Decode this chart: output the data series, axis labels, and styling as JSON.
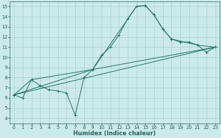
{
  "xlabel": "Humidex (Indice chaleur)",
  "xlim": [
    -0.5,
    23.5
  ],
  "ylim": [
    3.5,
    15.5
  ],
  "xticks": [
    0,
    1,
    2,
    3,
    4,
    5,
    6,
    7,
    8,
    9,
    10,
    11,
    12,
    13,
    14,
    15,
    16,
    17,
    18,
    19,
    20,
    21,
    22,
    23
  ],
  "yticks": [
    4,
    5,
    6,
    7,
    8,
    9,
    10,
    11,
    12,
    13,
    14,
    15
  ],
  "bg": "#cceaea",
  "grid_color": "#a8d0d0",
  "lc": "#1a7060",
  "line1_x": [
    0,
    1,
    2,
    3,
    4,
    5,
    6,
    7,
    8,
    9,
    10,
    11,
    12,
    13,
    14,
    15,
    16,
    17,
    18,
    19,
    20,
    21,
    22,
    23
  ],
  "line1_y": [
    6.3,
    6.0,
    7.8,
    7.2,
    6.8,
    6.7,
    6.5,
    4.3,
    8.0,
    8.8,
    10.2,
    11.0,
    12.2,
    13.8,
    15.0,
    15.1,
    14.2,
    12.8,
    11.8,
    11.5,
    11.5,
    11.2,
    10.5,
    11.0
  ],
  "line2_x": [
    0,
    2,
    9,
    14,
    15,
    16,
    17,
    18,
    21,
    23
  ],
  "line2_y": [
    6.3,
    7.8,
    8.8,
    15.0,
    15.1,
    14.2,
    12.8,
    11.8,
    11.2,
    11.0
  ],
  "line3_x": [
    0,
    23
  ],
  "line3_y": [
    6.3,
    11.0
  ],
  "line4_x": [
    0,
    9,
    23
  ],
  "line4_y": [
    6.3,
    8.8,
    11.0
  ],
  "font_color": "#2a5f5f",
  "tick_fs": 5,
  "xlabel_fs": 6
}
